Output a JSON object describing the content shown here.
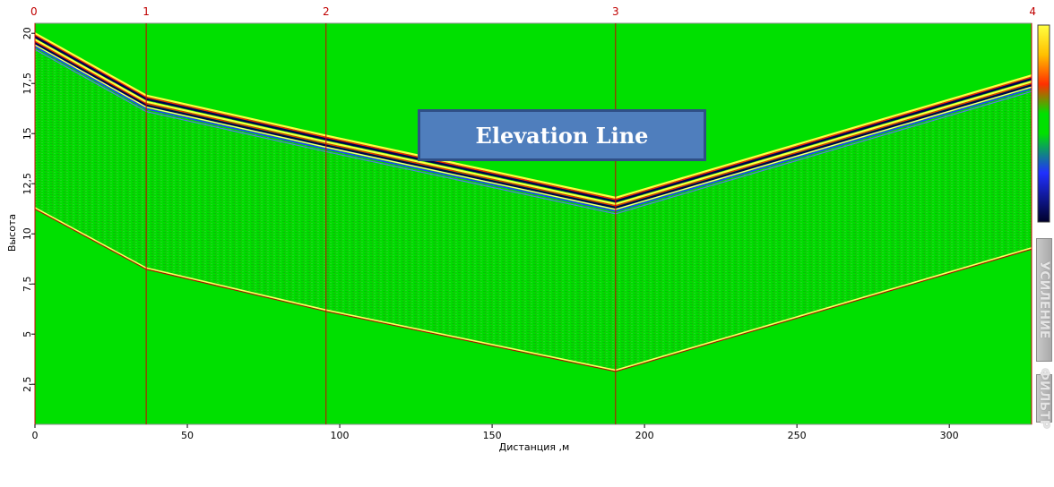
{
  "chart_data": {
    "type": "heatmap",
    "xlabel": "Дистанция ,м",
    "ylabel": "Высота",
    "xlim": [
      0,
      327
    ],
    "ylim": [
      0.5,
      20.5
    ],
    "x_ticks": [
      "0",
      "50",
      "100",
      "150",
      "200",
      "250",
      "300"
    ],
    "y_ticks": [
      "2,5",
      "5",
      "7,5",
      "10",
      "12,5",
      "15",
      "17,5",
      "20"
    ],
    "background_color": "#00e000",
    "markers": [
      {
        "label": "0",
        "x": 0
      },
      {
        "label": "1",
        "x": 36.5
      },
      {
        "label": "2",
        "x": 95.5
      },
      {
        "label": "3",
        "x": 190.5
      },
      {
        "label": "4",
        "x": 327
      }
    ],
    "surface_profile": {
      "x": [
        0,
        36.5,
        95.5,
        190.5,
        327
      ],
      "y": [
        20,
        16.9,
        14.9,
        11.8,
        17.9
      ]
    },
    "bottom_profile": {
      "x": [
        0,
        36.5,
        95.5,
        190.5,
        327
      ],
      "y": [
        11.3,
        8.3,
        6.2,
        3.2,
        9.3
      ]
    },
    "colorbar": [
      "#ffff00",
      "#ff8000",
      "#ff0000",
      "#00e000",
      "#0000ff",
      "#000060"
    ]
  },
  "annotation": {
    "text": "Elevation Line"
  },
  "side_tabs": {
    "amplification": "УСИЛЕНИЕ",
    "filter": "ФИЛЬТР"
  }
}
